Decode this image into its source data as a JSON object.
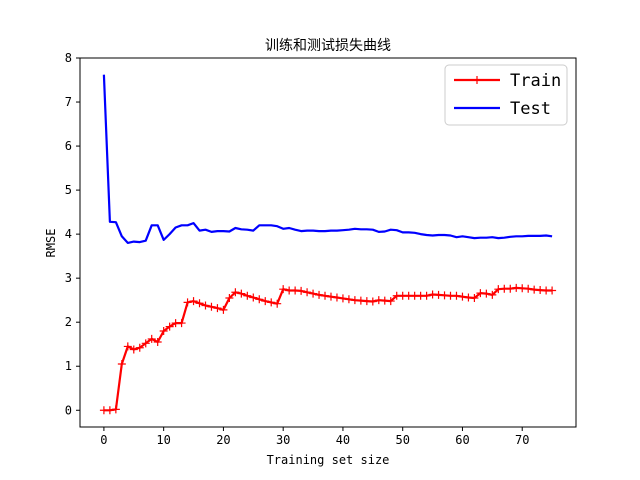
{
  "chart_data": {
    "type": "line",
    "title": "训练和测试损失曲线",
    "xlabel": "Training set size",
    "ylabel": "RMSE",
    "xlim": [
      -4,
      79
    ],
    "ylim": [
      -0.38,
      8.0
    ],
    "xticks": [
      0,
      10,
      20,
      30,
      40,
      50,
      60,
      70
    ],
    "yticks": [
      0,
      1,
      2,
      3,
      4,
      5,
      6,
      7,
      8
    ],
    "grid": false,
    "legend": "top-right",
    "series": [
      {
        "name": "Train",
        "color": "#ff0000",
        "marker": "plus",
        "x": [
          0,
          1,
          2,
          3,
          4,
          5,
          6,
          7,
          8,
          9,
          10,
          11,
          12,
          13,
          14,
          15,
          16,
          17,
          18,
          19,
          20,
          21,
          22,
          23,
          24,
          25,
          26,
          27,
          28,
          29,
          30,
          31,
          32,
          33,
          34,
          35,
          36,
          37,
          38,
          39,
          40,
          41,
          42,
          43,
          44,
          45,
          46,
          47,
          48,
          49,
          50,
          51,
          52,
          53,
          54,
          55,
          56,
          57,
          58,
          59,
          60,
          61,
          62,
          63,
          64,
          65,
          66,
          67,
          68,
          69,
          70,
          71,
          72,
          73,
          74,
          75
        ],
        "y": [
          0.0,
          0.0,
          0.02,
          1.05,
          1.45,
          1.38,
          1.42,
          1.52,
          1.62,
          1.55,
          1.8,
          1.9,
          1.98,
          1.98,
          2.45,
          2.48,
          2.43,
          2.38,
          2.35,
          2.32,
          2.28,
          2.55,
          2.68,
          2.65,
          2.6,
          2.56,
          2.52,
          2.48,
          2.45,
          2.42,
          2.75,
          2.72,
          2.72,
          2.71,
          2.68,
          2.65,
          2.62,
          2.6,
          2.58,
          2.56,
          2.54,
          2.52,
          2.5,
          2.49,
          2.48,
          2.47,
          2.5,
          2.49,
          2.48,
          2.6,
          2.6,
          2.6,
          2.6,
          2.6,
          2.6,
          2.63,
          2.62,
          2.61,
          2.6,
          2.6,
          2.58,
          2.56,
          2.55,
          2.66,
          2.65,
          2.62,
          2.75,
          2.76,
          2.76,
          2.78,
          2.77,
          2.76,
          2.74,
          2.73,
          2.72,
          2.72
        ]
      },
      {
        "name": "Test",
        "color": "#0000ff",
        "marker": "none",
        "x": [
          0,
          1,
          2,
          3,
          4,
          5,
          6,
          7,
          8,
          9,
          10,
          11,
          12,
          13,
          14,
          15,
          16,
          17,
          18,
          19,
          20,
          21,
          22,
          23,
          24,
          25,
          26,
          27,
          28,
          29,
          30,
          31,
          32,
          33,
          34,
          35,
          36,
          37,
          38,
          39,
          40,
          41,
          42,
          43,
          44,
          45,
          46,
          47,
          48,
          49,
          50,
          51,
          52,
          53,
          54,
          55,
          56,
          57,
          58,
          59,
          60,
          61,
          62,
          63,
          64,
          65,
          66,
          67,
          68,
          69,
          70,
          71,
          72,
          73,
          74,
          75
        ],
        "y": [
          7.62,
          4.28,
          4.27,
          3.95,
          3.8,
          3.83,
          3.82,
          3.85,
          4.2,
          4.2,
          3.87,
          4.0,
          4.15,
          4.2,
          4.2,
          4.25,
          4.08,
          4.1,
          4.05,
          4.07,
          4.07,
          4.06,
          4.14,
          4.11,
          4.1,
          4.08,
          4.2,
          4.2,
          4.2,
          4.18,
          4.12,
          4.14,
          4.1,
          4.07,
          4.08,
          4.08,
          4.07,
          4.07,
          4.08,
          4.08,
          4.09,
          4.1,
          4.12,
          4.11,
          4.11,
          4.1,
          4.05,
          4.06,
          4.1,
          4.09,
          4.04,
          4.04,
          4.03,
          4.0,
          3.98,
          3.97,
          3.98,
          3.98,
          3.97,
          3.93,
          3.95,
          3.93,
          3.91,
          3.92,
          3.92,
          3.93,
          3.91,
          3.92,
          3.94,
          3.95,
          3.95,
          3.96,
          3.96,
          3.96,
          3.97,
          3.95
        ]
      }
    ]
  }
}
